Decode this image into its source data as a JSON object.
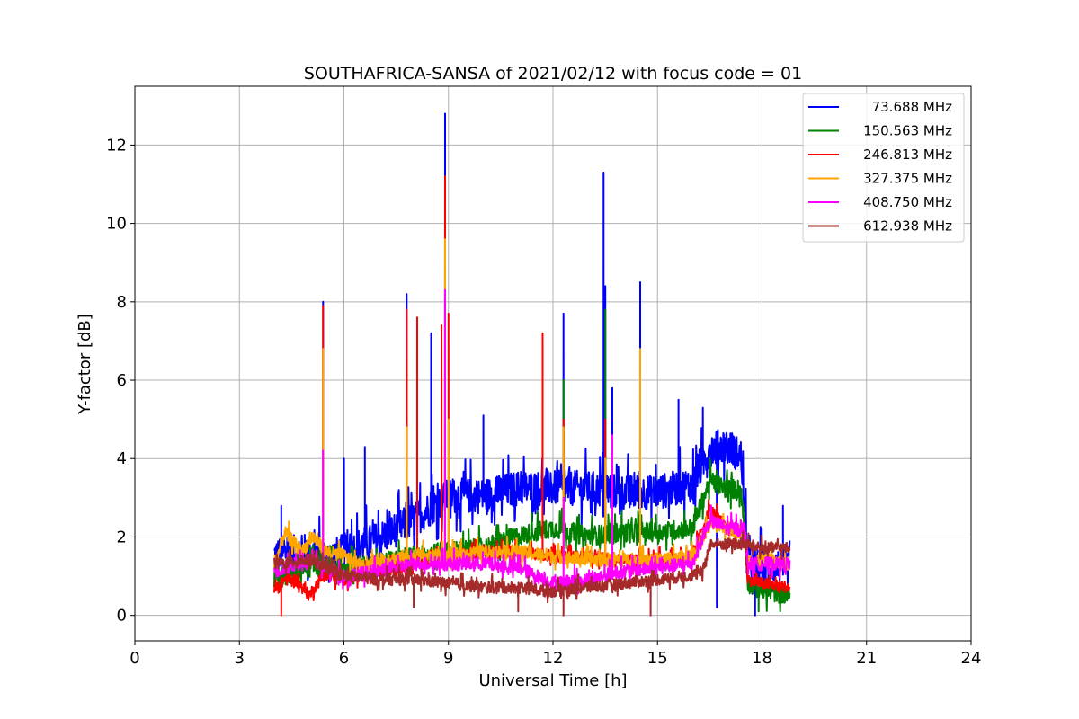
{
  "chart_data": {
    "type": "line",
    "title": "SOUTHAFRICA-SANSA of 2021/02/12 with focus code = 01",
    "xlabel": "Universal Time [h]",
    "ylabel": "Y-factor [dB]",
    "xlim": [
      0,
      24
    ],
    "ylim": [
      -0.65,
      13.5
    ],
    "xticks": [
      0,
      3,
      6,
      9,
      12,
      15,
      18,
      21,
      24
    ],
    "yticks": [
      0,
      2,
      4,
      6,
      8,
      10,
      12
    ],
    "grid": true,
    "legend_position": "top-right",
    "series": [
      {
        "name": "73.688 MHz",
        "color": "#0000ff",
        "baseline": [
          [
            4.0,
            1.5
          ],
          [
            5.0,
            1.6
          ],
          [
            5.5,
            1.4
          ],
          [
            6.0,
            1.6
          ],
          [
            7.0,
            1.9
          ],
          [
            8.0,
            2.4
          ],
          [
            9.0,
            3.0
          ],
          [
            10.0,
            3.0
          ],
          [
            11.0,
            3.2
          ],
          [
            12.0,
            3.2
          ],
          [
            13.0,
            3.2
          ],
          [
            14.0,
            3.1
          ],
          [
            15.0,
            3.1
          ],
          [
            16.0,
            3.3
          ],
          [
            16.5,
            4.2
          ],
          [
            17.0,
            4.3
          ],
          [
            17.4,
            4.0
          ],
          [
            17.6,
            1.3
          ],
          [
            18.0,
            1.2
          ],
          [
            18.8,
            1.2
          ]
        ],
        "noise": 0.9,
        "spikes": [
          [
            4.2,
            2.8
          ],
          [
            5.4,
            8.0
          ],
          [
            6.0,
            4.0
          ],
          [
            6.6,
            4.3
          ],
          [
            7.8,
            8.2
          ],
          [
            8.5,
            7.2
          ],
          [
            8.9,
            12.8
          ],
          [
            10.0,
            5.1
          ],
          [
            12.3,
            7.7
          ],
          [
            13.45,
            11.3
          ],
          [
            13.5,
            8.4
          ],
          [
            13.7,
            5.8
          ],
          [
            14.5,
            8.5
          ],
          [
            15.6,
            5.5
          ],
          [
            16.3,
            5.3
          ],
          [
            16.7,
            0.2
          ],
          [
            17.8,
            0.0
          ],
          [
            18.6,
            2.8
          ]
        ]
      },
      {
        "name": "150.563 MHz",
        "color": "#008000",
        "baseline": [
          [
            4.0,
            0.9
          ],
          [
            5.0,
            1.2
          ],
          [
            6.0,
            1.2
          ],
          [
            7.0,
            1.3
          ],
          [
            8.0,
            1.5
          ],
          [
            9.0,
            1.6
          ],
          [
            10.0,
            1.7
          ],
          [
            11.0,
            2.0
          ],
          [
            12.0,
            2.2
          ],
          [
            13.0,
            2.0
          ],
          [
            14.0,
            2.1
          ],
          [
            15.0,
            2.1
          ],
          [
            16.0,
            2.2
          ],
          [
            16.5,
            3.4
          ],
          [
            17.0,
            3.2
          ],
          [
            17.4,
            3.2
          ],
          [
            17.6,
            0.8
          ],
          [
            18.0,
            0.6
          ],
          [
            18.8,
            0.5
          ]
        ],
        "noise": 0.5,
        "spikes": [
          [
            7.8,
            6.5
          ],
          [
            8.9,
            11.2
          ],
          [
            12.3,
            6.0
          ],
          [
            13.5,
            7.8
          ],
          [
            16.5,
            4.0
          ],
          [
            17.9,
            0.1
          ]
        ]
      },
      {
        "name": "246.813 MHz",
        "color": "#ff0000",
        "baseline": [
          [
            4.0,
            0.6
          ],
          [
            4.3,
            0.9
          ],
          [
            4.6,
            0.9
          ],
          [
            5.0,
            0.5
          ],
          [
            5.4,
            1.0
          ],
          [
            6.0,
            0.9
          ],
          [
            7.0,
            1.1
          ],
          [
            8.0,
            1.3
          ],
          [
            9.0,
            1.5
          ],
          [
            10.0,
            1.6
          ],
          [
            11.0,
            1.6
          ],
          [
            12.0,
            1.5
          ],
          [
            13.0,
            1.5
          ],
          [
            14.0,
            1.4
          ],
          [
            15.0,
            1.4
          ],
          [
            16.0,
            1.5
          ],
          [
            16.5,
            2.7
          ],
          [
            17.0,
            2.2
          ],
          [
            17.5,
            2.0
          ],
          [
            17.6,
            0.9
          ],
          [
            18.0,
            0.8
          ],
          [
            18.8,
            0.7
          ]
        ],
        "noise": 0.3,
        "spikes": [
          [
            4.2,
            0.0
          ],
          [
            5.4,
            7.9
          ],
          [
            7.8,
            7.8
          ],
          [
            8.1,
            7.6
          ],
          [
            8.8,
            7.4
          ],
          [
            8.9,
            11.2
          ],
          [
            9.0,
            7.7
          ],
          [
            11.7,
            7.2
          ],
          [
            12.3,
            5.0
          ],
          [
            13.5,
            5.0
          ]
        ]
      },
      {
        "name": "327.375 MHz",
        "color": "#ffa500",
        "baseline": [
          [
            4.0,
            1.2
          ],
          [
            4.3,
            2.1
          ],
          [
            4.8,
            1.6
          ],
          [
            5.1,
            2.0
          ],
          [
            5.5,
            1.6
          ],
          [
            6.0,
            1.5
          ],
          [
            6.5,
            1.2
          ],
          [
            7.0,
            1.4
          ],
          [
            8.0,
            1.5
          ],
          [
            9.0,
            1.5
          ],
          [
            10.0,
            1.6
          ],
          [
            11.0,
            1.6
          ],
          [
            12.0,
            1.5
          ],
          [
            13.0,
            1.4
          ],
          [
            14.0,
            1.4
          ],
          [
            15.0,
            1.4
          ],
          [
            16.0,
            1.5
          ],
          [
            16.5,
            2.3
          ],
          [
            17.0,
            2.2
          ],
          [
            17.5,
            2.1
          ],
          [
            17.6,
            1.4
          ],
          [
            18.0,
            1.4
          ],
          [
            18.8,
            1.3
          ]
        ],
        "noise": 0.35,
        "spikes": [
          [
            5.4,
            6.8
          ],
          [
            7.8,
            4.8
          ],
          [
            8.9,
            9.6
          ],
          [
            9.0,
            5.0
          ],
          [
            12.3,
            4.8
          ],
          [
            13.5,
            4.0
          ],
          [
            14.5,
            6.8
          ]
        ]
      },
      {
        "name": "408.750 MHz",
        "color": "#ff00ff",
        "baseline": [
          [
            4.0,
            1.1
          ],
          [
            5.0,
            1.4
          ],
          [
            6.0,
            1.0
          ],
          [
            7.0,
            1.1
          ],
          [
            8.0,
            1.3
          ],
          [
            9.0,
            1.3
          ],
          [
            10.0,
            1.3
          ],
          [
            11.0,
            1.2
          ],
          [
            12.0,
            0.8
          ],
          [
            13.0,
            0.9
          ],
          [
            14.0,
            1.1
          ],
          [
            15.0,
            1.2
          ],
          [
            16.0,
            1.3
          ],
          [
            16.5,
            2.4
          ],
          [
            17.0,
            2.2
          ],
          [
            17.5,
            2.2
          ],
          [
            17.6,
            1.3
          ],
          [
            18.0,
            1.3
          ],
          [
            18.8,
            1.3
          ]
        ],
        "noise": 0.35,
        "spikes": [
          [
            5.4,
            4.2
          ],
          [
            8.9,
            8.3
          ],
          [
            12.3,
            3.0
          ],
          [
            13.7,
            4.6
          ]
        ]
      },
      {
        "name": "612.938 MHz",
        "color": "#a52a2a",
        "baseline": [
          [
            4.0,
            1.3
          ],
          [
            5.0,
            1.4
          ],
          [
            6.0,
            1.0
          ],
          [
            7.0,
            0.9
          ],
          [
            8.0,
            0.9
          ],
          [
            9.0,
            0.8
          ],
          [
            10.0,
            0.7
          ],
          [
            11.0,
            0.7
          ],
          [
            12.0,
            0.6
          ],
          [
            13.0,
            0.7
          ],
          [
            14.0,
            0.8
          ],
          [
            15.0,
            0.9
          ],
          [
            16.0,
            1.0
          ],
          [
            16.3,
            1.1
          ],
          [
            16.5,
            1.8
          ],
          [
            17.0,
            1.8
          ],
          [
            17.5,
            1.8
          ],
          [
            18.0,
            1.7
          ],
          [
            18.8,
            1.7
          ]
        ],
        "noise": 0.3,
        "spikes": [
          [
            8.0,
            0.2
          ],
          [
            11.0,
            0.1
          ],
          [
            12.3,
            0.0
          ],
          [
            14.8,
            0.0
          ]
        ]
      }
    ]
  }
}
